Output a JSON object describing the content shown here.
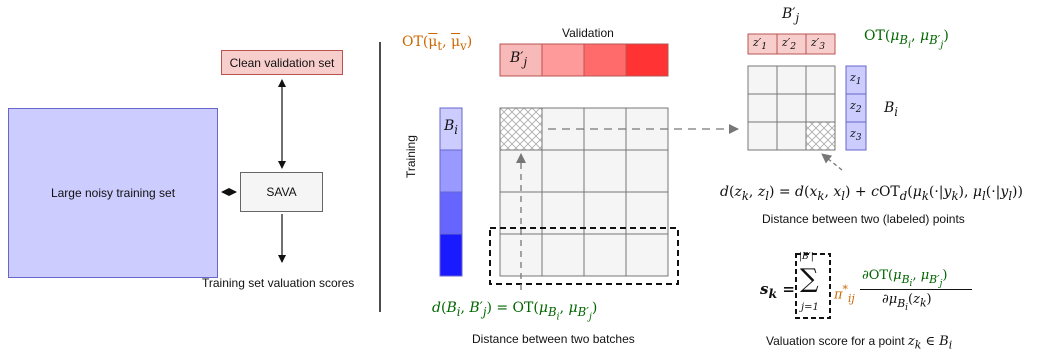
{
  "left": {
    "train_label": "Large noisy training set",
    "clean_label": "Clean validation set",
    "sava_label": "SAVA",
    "scores_label": "Training set valuation scores"
  },
  "middle": {
    "ot_label": "OT(μ̄_t, μ̄_v)",
    "validation_label": "Validation",
    "training_label": "Training",
    "bj_label": "B'_j",
    "bi_label": "B_i",
    "dist_formula": "d(B_i, B'_j) = OT(μ_{B_i}, μ_{B'_j})",
    "dist_caption": "Distance between two batches"
  },
  "right": {
    "bj_title": "B'_j",
    "z_top": [
      "z'_1",
      "z'_2",
      "z'_3"
    ],
    "z_side": [
      "z_1",
      "z_2",
      "z_3"
    ],
    "bi_label": "B_i",
    "ot_label": "OT(μ_{B_i}, μ_{B'_j})",
    "point_formula": "d(z_k, z_l) = d(x_k, x_l) + cOT_d(μ_k(·|y_k), μ_l(·|y_l))",
    "point_caption": "Distance between two (labeled) points",
    "score_caption": "Valuation score for a point  z_k ∈ B_i"
  },
  "colors": {
    "red_shades": [
      "#ff9999",
      "#ff7777",
      "#ff5555",
      "#ff3333"
    ],
    "blue_shades": [
      "#ccccff",
      "#9999ff",
      "#6666ff",
      "#1a1aff"
    ],
    "ot_orange": "#cc6600",
    "ot_green": "#006600"
  }
}
